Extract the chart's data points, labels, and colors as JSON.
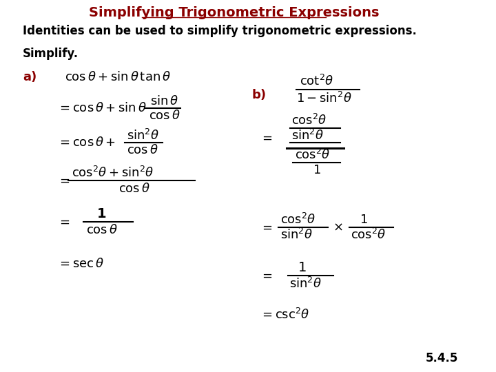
{
  "title": "Simplifying Trigonometric Expressions",
  "subtitle": "Identities can be used to simplify trigonometric expressions.",
  "simplify_label": "Simplify.",
  "label_a": "a)",
  "label_b": "b)",
  "slide_number": "5.4.5",
  "title_color": "#8B0000",
  "label_color": "#8B0000",
  "text_color": "#000000",
  "bg_color": "#FFFFFF",
  "font_size_title": 14,
  "font_size_body": 12,
  "font_size_math": 13
}
